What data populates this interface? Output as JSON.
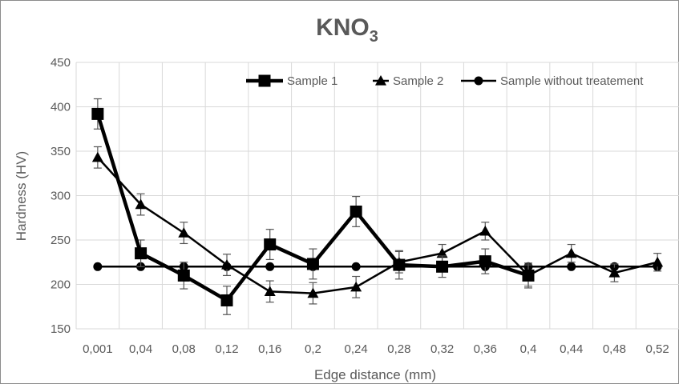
{
  "chart_data": {
    "type": "line",
    "title": "KNO",
    "title_subscript": "3",
    "xlabel": "Edge distance (mm)",
    "ylabel": "Hardness (HV)",
    "categories": [
      "0,001",
      "0,04",
      "0,08",
      "0,12",
      "0,16",
      "0,2",
      "0,24",
      "0,28",
      "0,32",
      "0,36",
      "0,4",
      "0,44",
      "0,48",
      "0,52"
    ],
    "ylim": [
      150,
      450
    ],
    "yticks": [
      150,
      200,
      250,
      300,
      350,
      400,
      450
    ],
    "grid": "vertical and horizontal",
    "legend_position": "top",
    "colors": {
      "series": "#000000",
      "grid": "#d9d9d9",
      "text": "#595959",
      "border": "#8c8c8c"
    },
    "series": [
      {
        "name": "Sample 1",
        "marker": "square",
        "values": [
          392,
          235,
          210,
          182,
          245,
          223,
          282,
          222,
          220,
          226,
          210,
          null,
          null,
          null
        ],
        "errors": [
          17,
          15,
          15,
          16,
          17,
          17,
          17,
          16,
          12,
          14,
          14,
          null,
          null,
          null
        ]
      },
      {
        "name": "Sample 2",
        "marker": "triangle",
        "values": [
          343,
          290,
          258,
          222,
          192,
          190,
          197,
          225,
          235,
          260,
          210,
          235,
          213,
          225
        ],
        "errors": [
          12,
          12,
          12,
          12,
          12,
          12,
          12,
          12,
          10,
          10,
          12,
          10,
          10,
          10
        ]
      },
      {
        "name": "Sample without treatement",
        "marker": "circle",
        "values": [
          220,
          220,
          220,
          220,
          220,
          220,
          220,
          220,
          220,
          220,
          220,
          220,
          220,
          220
        ],
        "errors": null
      }
    ]
  }
}
